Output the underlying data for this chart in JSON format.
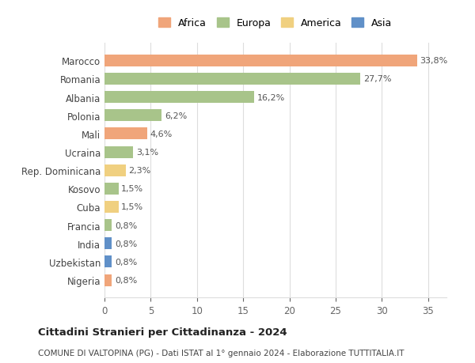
{
  "countries": [
    "Marocco",
    "Romania",
    "Albania",
    "Polonia",
    "Mali",
    "Ucraina",
    "Rep. Dominicana",
    "Kosovo",
    "Cuba",
    "Francia",
    "India",
    "Uzbekistan",
    "Nigeria"
  ],
  "values": [
    33.8,
    27.7,
    16.2,
    6.2,
    4.6,
    3.1,
    2.3,
    1.5,
    1.5,
    0.8,
    0.8,
    0.8,
    0.8
  ],
  "labels": [
    "33,8%",
    "27,7%",
    "16,2%",
    "6,2%",
    "4,6%",
    "3,1%",
    "2,3%",
    "1,5%",
    "1,5%",
    "0,8%",
    "0,8%",
    "0,8%",
    "0,8%"
  ],
  "continents": [
    "Africa",
    "Europa",
    "Europa",
    "Europa",
    "Africa",
    "Europa",
    "America",
    "Europa",
    "America",
    "Europa",
    "Asia",
    "Asia",
    "Africa"
  ],
  "continent_colors": {
    "Africa": "#F0A57A",
    "Europa": "#A8C48A",
    "America": "#F0D080",
    "Asia": "#6090C8"
  },
  "legend_order": [
    "Africa",
    "Europa",
    "America",
    "Asia"
  ],
  "title": "Cittadini Stranieri per Cittadinanza - 2024",
  "subtitle": "COMUNE DI VALTOPINA (PG) - Dati ISTAT al 1° gennaio 2024 - Elaborazione TUTTITALIA.IT",
  "xlim": [
    0,
    37
  ],
  "xticks": [
    0,
    5,
    10,
    15,
    20,
    25,
    30,
    35
  ],
  "background_color": "#ffffff",
  "grid_color": "#dddddd",
  "bar_height": 0.65
}
